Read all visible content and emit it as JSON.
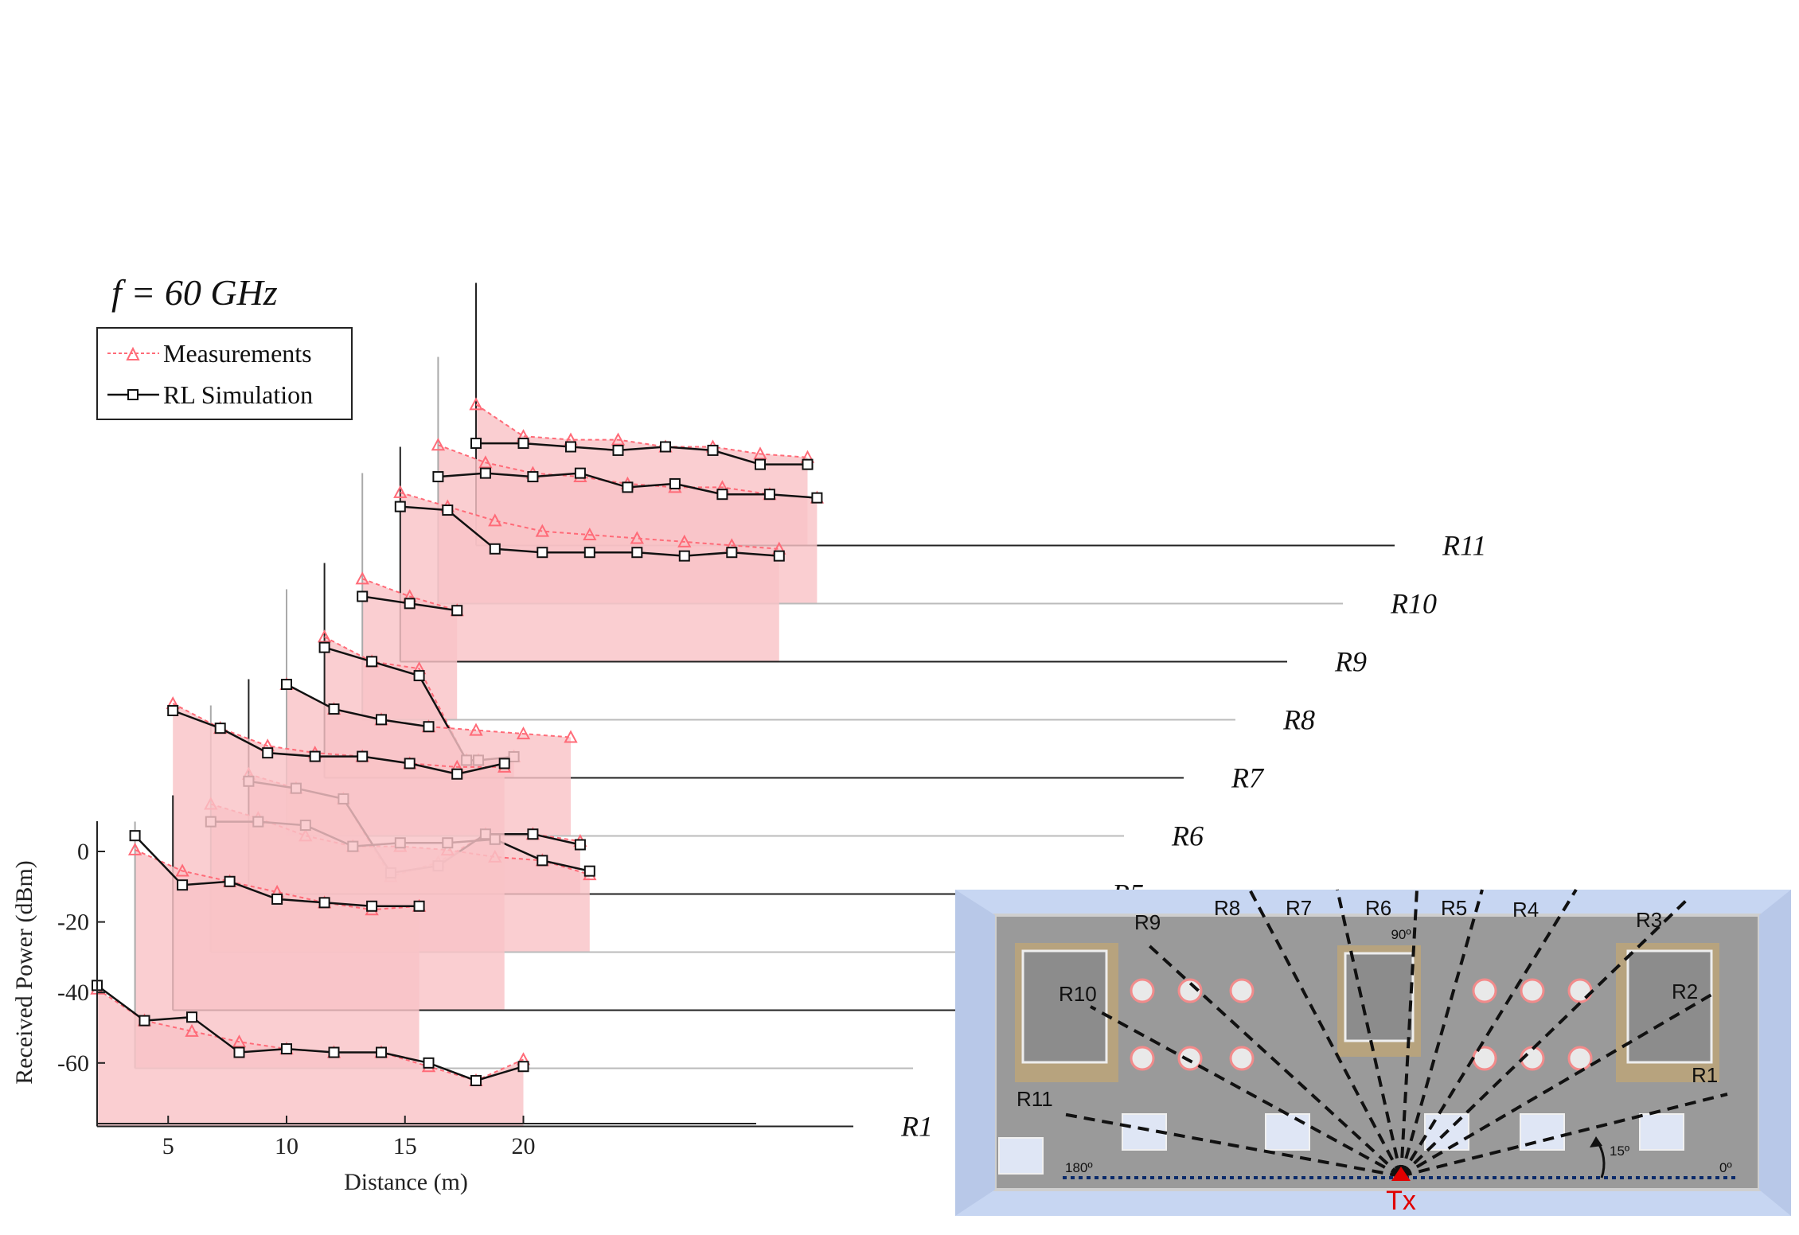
{
  "chart_data": {
    "type": "line",
    "title": "f = 60 GHz",
    "xlabel": "Distance (m)",
    "ylabel": "Received Power (dBm)",
    "xlim": [
      2,
      22
    ],
    "ylim": [
      -78,
      10
    ],
    "xticks": [
      "5",
      "10",
      "15",
      "20"
    ],
    "yticks": [
      "0",
      "-20",
      "-40",
      "-60"
    ],
    "legend": {
      "position": "top-left",
      "entries": [
        "Measurements",
        "RL Simulation"
      ]
    },
    "colors": {
      "measurement": "#ff6b78",
      "simulation": "#111111",
      "fill": "#f9c3c7"
    },
    "series": [
      {
        "name": "R1",
        "measurements": [
          [
            2,
            -39
          ],
          [
            4,
            -48
          ],
          [
            6,
            -51
          ],
          [
            8,
            -54
          ],
          [
            10,
            -56
          ],
          [
            12,
            -57
          ],
          [
            14,
            -57
          ],
          [
            16,
            -61
          ],
          [
            18,
            -65
          ],
          [
            20,
            -59
          ]
        ],
        "simulation": [
          [
            2,
            -38
          ],
          [
            4,
            -48
          ],
          [
            6,
            -47
          ],
          [
            8,
            -57
          ],
          [
            10,
            -56
          ],
          [
            12,
            -57
          ],
          [
            14,
            -57
          ],
          [
            16,
            -60
          ],
          [
            18,
            -65
          ],
          [
            20,
            -61
          ]
        ]
      },
      {
        "name": "R2",
        "measurements": [
          [
            3.6,
            -16
          ],
          [
            5.6,
            -22
          ],
          [
            7.6,
            -25
          ],
          [
            9.6,
            -28
          ],
          [
            11.6,
            -31
          ],
          [
            13.6,
            -33
          ],
          [
            15.6,
            -32
          ]
        ],
        "simulation": [
          [
            3.6,
            -12
          ],
          [
            5.6,
            -26
          ],
          [
            7.6,
            -25
          ],
          [
            9.6,
            -30
          ],
          [
            11.6,
            -31
          ],
          [
            13.6,
            -32
          ],
          [
            15.6,
            -32
          ]
        ]
      },
      {
        "name": "R3",
        "measurements": [
          [
            5.2,
            9
          ],
          [
            7.2,
            2
          ],
          [
            9.2,
            -3
          ],
          [
            11.2,
            -5
          ],
          [
            13.2,
            -6
          ],
          [
            15.2,
            -8
          ],
          [
            17.2,
            -9
          ],
          [
            19.2,
            -9
          ]
        ],
        "simulation": [
          [
            5.2,
            7
          ],
          [
            7.2,
            2
          ],
          [
            9.2,
            -5
          ],
          [
            11.2,
            -6
          ],
          [
            13.2,
            -6
          ],
          [
            15.2,
            -8
          ],
          [
            17.2,
            -11
          ],
          [
            19.2,
            -8
          ]
        ]
      },
      {
        "name": "R4",
        "measurements": [
          [
            6.8,
            -36
          ],
          [
            8.8,
            -40
          ],
          [
            10.8,
            -45
          ],
          [
            12.8,
            -48
          ],
          [
            14.8,
            -48
          ],
          [
            16.8,
            -49
          ],
          [
            18.8,
            -51
          ],
          [
            20.8,
            -52
          ],
          [
            22.8,
            -56
          ]
        ],
        "simulation": [
          [
            6.8,
            -41
          ],
          [
            8.8,
            -41
          ],
          [
            10.8,
            -42
          ],
          [
            12.8,
            -48
          ],
          [
            14.8,
            -47
          ],
          [
            16.8,
            -47
          ],
          [
            18.8,
            -46
          ],
          [
            20.8,
            -52
          ],
          [
            22.8,
            -55
          ]
        ]
      },
      {
        "name": "R5",
        "measurements": [
          [
            8.4,
            -44
          ],
          [
            10.4,
            -48
          ],
          [
            12.4,
            -51
          ],
          [
            14.4,
            -73
          ],
          [
            16.4,
            -69
          ],
          [
            18.4,
            -61
          ],
          [
            20.4,
            -61
          ],
          [
            22.4,
            -63
          ]
        ],
        "simulation": [
          [
            8.4,
            -46
          ],
          [
            10.4,
            -48
          ],
          [
            12.4,
            -51
          ],
          [
            14.4,
            -72
          ],
          [
            16.4,
            -70
          ],
          [
            18.4,
            -61
          ],
          [
            20.4,
            -61
          ],
          [
            22.4,
            -64
          ]
        ]
      },
      {
        "name": "R6",
        "measurements": [
          [
            10,
            -35
          ],
          [
            12,
            -42
          ],
          [
            14,
            -45
          ],
          [
            16,
            -47
          ],
          [
            18,
            -48
          ],
          [
            20,
            -49
          ],
          [
            22,
            -50
          ]
        ],
        "simulation": [
          [
            10,
            -35
          ],
          [
            12,
            -42
          ],
          [
            14,
            -45
          ],
          [
            16,
            -47
          ]
        ]
      },
      {
        "name": "R7",
        "measurements": [
          [
            11.6,
            -38
          ],
          [
            13.6,
            -45
          ],
          [
            15.6,
            -47
          ],
          [
            17.6,
            -73
          ],
          [
            18.1,
            -73
          ],
          [
            19.6,
            -72
          ]
        ],
        "simulation": [
          [
            11.6,
            -41
          ],
          [
            13.6,
            -45
          ],
          [
            15.6,
            -49
          ],
          [
            17.6,
            -73
          ],
          [
            18.1,
            -73
          ],
          [
            19.6,
            -72
          ]
        ]
      },
      {
        "name": "R8",
        "measurements": [
          [
            13.2,
            -38
          ],
          [
            15.2,
            -43
          ],
          [
            17.2,
            -47
          ]
        ],
        "simulation": [
          [
            13.2,
            -43
          ],
          [
            15.2,
            -45
          ],
          [
            17.2,
            -47
          ]
        ]
      },
      {
        "name": "R9",
        "measurements": [
          [
            14.8,
            -30
          ],
          [
            16.8,
            -34
          ],
          [
            18.8,
            -38
          ],
          [
            20.8,
            -41
          ],
          [
            22.8,
            -42
          ],
          [
            24.8,
            -43
          ],
          [
            26.8,
            -44
          ],
          [
            28.8,
            -45
          ],
          [
            30.8,
            -46
          ]
        ],
        "simulation": [
          [
            14.8,
            -34
          ],
          [
            16.8,
            -35
          ],
          [
            18.8,
            -46
          ],
          [
            20.8,
            -47
          ],
          [
            22.8,
            -47
          ],
          [
            24.8,
            -47
          ],
          [
            26.8,
            -48
          ],
          [
            28.8,
            -47
          ],
          [
            30.8,
            -48
          ]
        ]
      },
      {
        "name": "R10",
        "measurements": [
          [
            16.4,
            -33
          ],
          [
            18.4,
            -38
          ],
          [
            20.4,
            -41
          ],
          [
            22.4,
            -42
          ],
          [
            24.4,
            -44
          ],
          [
            26.4,
            -45
          ],
          [
            28.4,
            -45
          ],
          [
            30.4,
            -47
          ],
          [
            32.4,
            -48
          ]
        ],
        "simulation": [
          [
            16.4,
            -42
          ],
          [
            18.4,
            -41
          ],
          [
            20.4,
            -42
          ],
          [
            22.4,
            -41
          ],
          [
            24.4,
            -45
          ],
          [
            26.4,
            -44
          ],
          [
            28.4,
            -47
          ],
          [
            30.4,
            -47
          ],
          [
            32.4,
            -48
          ]
        ]
      },
      {
        "name": "R11",
        "measurements": [
          [
            18,
            -38
          ],
          [
            20,
            -47
          ],
          [
            22,
            -48
          ],
          [
            24,
            -48
          ],
          [
            26,
            -50
          ],
          [
            28,
            -50
          ],
          [
            30,
            -52
          ],
          [
            32,
            -53
          ]
        ],
        "simulation": [
          [
            18,
            -49
          ],
          [
            20,
            -49
          ],
          [
            22,
            -50
          ],
          [
            24,
            -51
          ],
          [
            26,
            -50
          ],
          [
            28,
            -51
          ],
          [
            30,
            -55
          ],
          [
            32,
            -55
          ]
        ]
      }
    ],
    "map": {
      "route_labels": [
        "R1",
        "R2",
        "R3",
        "R4",
        "R5",
        "R6",
        "R7",
        "R8",
        "R9",
        "R10",
        "R11"
      ],
      "angle_labels": [
        "180º",
        "90º",
        "15º",
        "0º"
      ],
      "tx_label": "Tx"
    }
  }
}
